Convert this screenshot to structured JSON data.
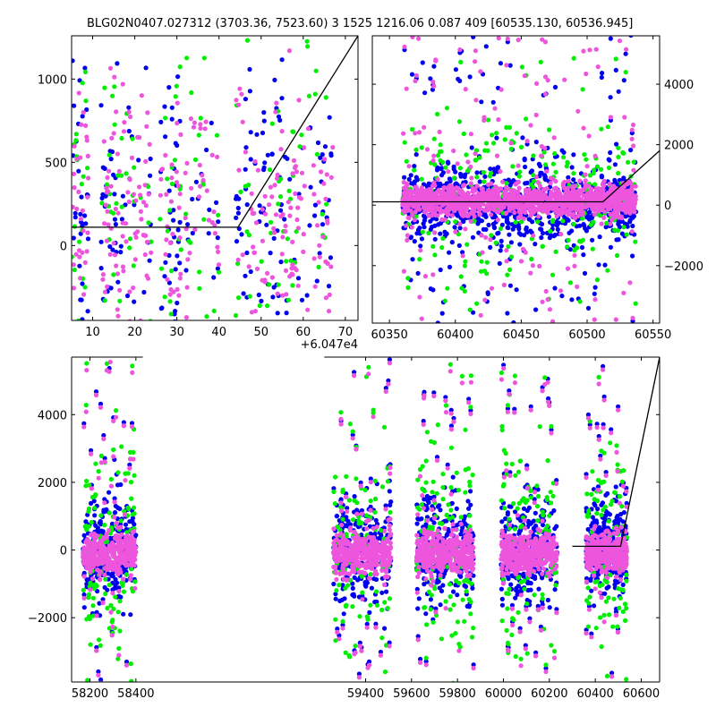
{
  "title": "BLG02N0407.027312 (3703.36, 7523.60)    3 1525 1216.06 0.087 409 [60535.130, 60536.945]",
  "colors": {
    "series_a": "#0000ee",
    "series_b": "#00ee00",
    "series_c": "#ee55dd",
    "model": "#000000"
  },
  "chart_data": [
    {
      "type": "scatter",
      "panel": "top-left",
      "xlim": [
        5,
        73
      ],
      "ylim": [
        -450,
        1260
      ],
      "xticks": [
        10,
        20,
        30,
        40,
        50,
        60,
        70
      ],
      "yticks": [
        0,
        500,
        1000
      ],
      "x_offset_label": "+6.047e4",
      "grid": false,
      "point_x_ranges": [
        [
          5,
          9
        ],
        [
          12,
          18
        ],
        [
          18,
          24
        ],
        [
          26,
          31
        ],
        [
          32,
          40
        ],
        [
          44,
          52
        ],
        [
          52,
          58
        ],
        [
          58,
          67
        ]
      ],
      "model_line": {
        "x": [
          5,
          44.5,
          73
        ],
        "y": [
          110,
          110,
          1260
        ]
      },
      "series": [
        {
          "color": "#0000ee",
          "count": 260,
          "center": 130,
          "spread": 480
        },
        {
          "color": "#00ee00",
          "count": 170,
          "center": 130,
          "spread": 520
        },
        {
          "color": "#ee55dd",
          "count": 300,
          "center": 170,
          "spread": 330
        }
      ]
    },
    {
      "type": "scatter",
      "panel": "top-right",
      "xlim": [
        60337,
        60555
      ],
      "ylim": [
        -3900,
        5600
      ],
      "xticks": [
        60350,
        60400,
        60450,
        60500,
        60550
      ],
      "yticks": [
        -2000,
        0,
        2000,
        4000
      ],
      "grid": false,
      "point_x_ranges": [
        [
          60360,
          60537
        ]
      ],
      "model_line": {
        "x": [
          60337,
          60512,
          60555
        ],
        "y": [
          110,
          110,
          1800
        ]
      },
      "series": [
        {
          "color": "#0000ee",
          "count": 900,
          "center": 50,
          "spread": 650
        },
        {
          "color": "#00ee00",
          "count": 260,
          "center": 100,
          "spread": 1300
        },
        {
          "color": "#ee55dd",
          "count": 1400,
          "center": 150,
          "spread": 250
        }
      ]
    },
    {
      "type": "scatter",
      "panel": "bottom",
      "xlim": [
        58120,
        60680
      ],
      "ylim": [
        -3900,
        5700
      ],
      "xticks": [
        58200,
        58400,
        59400,
        59600,
        59800,
        60000,
        60200,
        60400,
        60600
      ],
      "yticks": [
        -2000,
        0,
        2000,
        4000
      ],
      "grid": false,
      "axis_break_x": [
        58430,
        59220
      ],
      "point_x_ranges": [
        [
          58170,
          58400
        ],
        [
          59260,
          59510
        ],
        [
          59620,
          59870
        ],
        [
          59990,
          60235
        ],
        [
          60360,
          60537
        ]
      ],
      "model_line": {
        "x": [
          60300,
          60510,
          60680
        ],
        "y": [
          110,
          110,
          5700
        ]
      },
      "series": [
        {
          "color": "#0000ee",
          "count": 1500,
          "center": 0,
          "spread": 750
        },
        {
          "color": "#00ee00",
          "count": 650,
          "center": 100,
          "spread": 1600
        },
        {
          "color": "#ee55dd",
          "count": 2800,
          "center": -100,
          "spread": 300
        }
      ]
    }
  ]
}
